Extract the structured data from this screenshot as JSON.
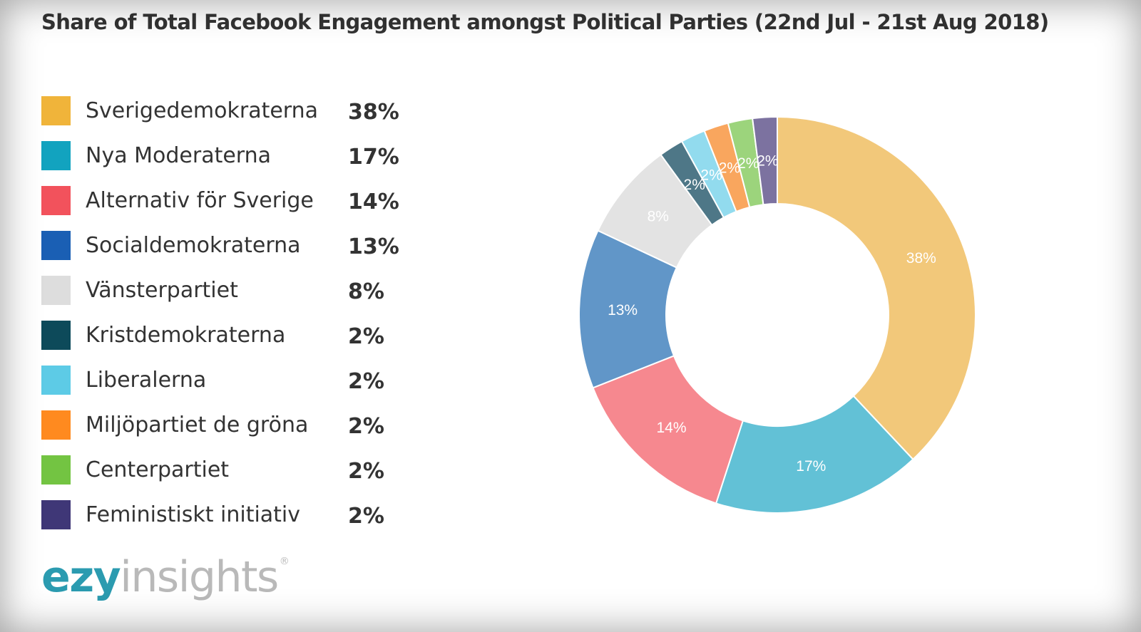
{
  "chart_data": {
    "type": "pie",
    "title": "Share of Total Facebook Engagement amongst Political Parties (22nd Jul - 21st Aug 2018)",
    "series": [
      {
        "name": "Sverigedemokraterna",
        "value": 38,
        "label": "38%",
        "color": "#f0b43a",
        "slice_color": "#f2c87a"
      },
      {
        "name": "Nya Moderaterna",
        "value": 17,
        "label": "17%",
        "color": "#12a3bf",
        "slice_color": "#62c1d6"
      },
      {
        "name": "Alternativ för Sverige",
        "value": 14,
        "label": "14%",
        "color": "#f2525c",
        "slice_color": "#f6888f"
      },
      {
        "name": "Socialdemokraterna",
        "value": 13,
        "label": "13%",
        "color": "#1a5fb4",
        "slice_color": "#6196c8"
      },
      {
        "name": "Vänsterpartiet",
        "value": 8,
        "label": "8%",
        "color": "#dddddd",
        "slice_color": "#e3e3e3"
      },
      {
        "name": "Kristdemokraterna",
        "value": 2,
        "label": "2%",
        "color": "#0d4a5a",
        "slice_color": "#4e7787"
      },
      {
        "name": "Liberalerna",
        "value": 2,
        "label": "2%",
        "color": "#5dcbe6",
        "slice_color": "#92dbee"
      },
      {
        "name": "Miljöpartiet de gröna",
        "value": 2,
        "label": "2%",
        "color": "#ff8a1f",
        "slice_color": "#f9a65e"
      },
      {
        "name": "Centerpartiet",
        "value": 2,
        "label": "2%",
        "color": "#73c442",
        "slice_color": "#9cd47c"
      },
      {
        "name": "Feministiskt initiativ",
        "value": 2,
        "label": "2%",
        "color": "#3f3777",
        "slice_color": "#7c72a0"
      }
    ],
    "legend_position": "left"
  },
  "logo": {
    "part1": "ezy",
    "part2": "insights",
    "mark": "®"
  }
}
